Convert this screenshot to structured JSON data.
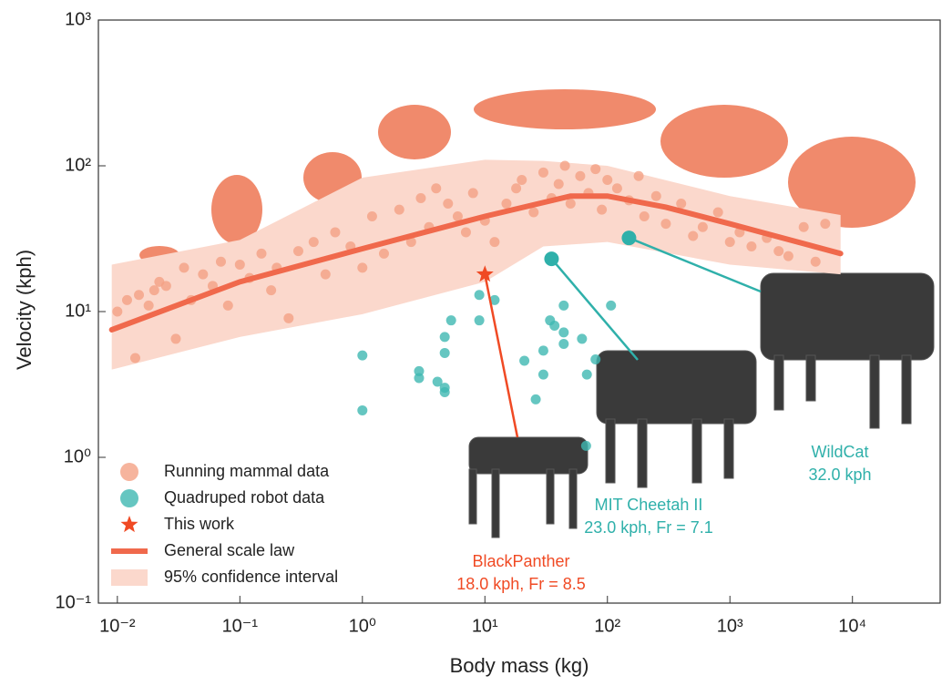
{
  "chart_data": {
    "type": "scatter",
    "xlabel": "Body mass (kg)",
    "ylabel": "Velocity (kph)",
    "xscale": "log",
    "yscale": "log",
    "xlim": [
      0.007,
      52000
    ],
    "ylim": [
      0.1,
      1000
    ],
    "xticks": [
      {
        "value": 0.01,
        "label": "10⁻²"
      },
      {
        "value": 0.1,
        "label": "10⁻¹"
      },
      {
        "value": 1,
        "label": "10⁰"
      },
      {
        "value": 10,
        "label": "10¹"
      },
      {
        "value": 100,
        "label": "10²"
      },
      {
        "value": 1000,
        "label": "10³"
      },
      {
        "value": 10000,
        "label": "10⁴"
      }
    ],
    "yticks": [
      {
        "value": 0.1,
        "label": "10⁻¹"
      },
      {
        "value": 1,
        "label": "10⁰"
      },
      {
        "value": 10,
        "label": "10¹"
      },
      {
        "value": 100,
        "label": "10²"
      },
      {
        "value": 1000,
        "label": "10³"
      }
    ],
    "legend": "lower left",
    "band": {
      "name": "95% confidence interval",
      "color": "#fbd8cc",
      "x": [
        0.009,
        0.1,
        1,
        10,
        30,
        100,
        1000,
        8000
      ],
      "upper": [
        21,
        31,
        83,
        110,
        108,
        100,
        62,
        46
      ],
      "lower": [
        4.0,
        6.7,
        9.6,
        16,
        28,
        30,
        21,
        18
      ]
    },
    "line": {
      "name": "General scale law",
      "color": "#f0694c",
      "x": [
        0.009,
        0.1,
        1,
        10,
        50,
        100,
        300,
        1000,
        8000
      ],
      "values": [
        7.5,
        16,
        27,
        45,
        62,
        62,
        52,
        40,
        25
      ]
    },
    "series": [
      {
        "name": "Running mammal data",
        "color": "#f4a184",
        "x": [
          0.01,
          0.012,
          0.014,
          0.015,
          0.018,
          0.02,
          0.022,
          0.025,
          0.03,
          0.035,
          0.04,
          0.05,
          0.06,
          0.07,
          0.08,
          0.1,
          0.12,
          0.15,
          0.18,
          0.2,
          0.25,
          0.3,
          0.4,
          0.5,
          0.6,
          0.8,
          1,
          1.2,
          1.5,
          2,
          2.5,
          3,
          3.5,
          4,
          5,
          6,
          7,
          8,
          10,
          12,
          15,
          18,
          20,
          25,
          30,
          35,
          40,
          45,
          50,
          60,
          70,
          80,
          90,
          100,
          120,
          150,
          180,
          200,
          250,
          300,
          400,
          500,
          600,
          800,
          1000,
          1200,
          1500,
          2000,
          2500,
          3000,
          4000,
          5000,
          6000
        ],
        "values": [
          10,
          12,
          4.8,
          13,
          11,
          14,
          16,
          15,
          6.5,
          20,
          12,
          18,
          15,
          22,
          11,
          21,
          17,
          25,
          14,
          20,
          9,
          26,
          30,
          18,
          35,
          28,
          20,
          45,
          25,
          50,
          30,
          60,
          38,
          70,
          55,
          45,
          35,
          65,
          42,
          30,
          55,
          70,
          80,
          48,
          90,
          60,
          75,
          100,
          55,
          85,
          65,
          95,
          50,
          80,
          70,
          58,
          85,
          45,
          62,
          40,
          55,
          33,
          38,
          48,
          30,
          35,
          28,
          32,
          26,
          24,
          38,
          22,
          40
        ]
      },
      {
        "name": "Quadruped robot data",
        "color": "#3fb8b2",
        "x": [
          1.0,
          1.0,
          2.9,
          2.9,
          4.1,
          4.7,
          4.7,
          4.7,
          4.7,
          5.3,
          9,
          9,
          12,
          21,
          26,
          30,
          34,
          37,
          44,
          44,
          44,
          30,
          62,
          68,
          80,
          107,
          67
        ],
        "values": [
          5.0,
          2.1,
          3.9,
          3.5,
          3.3,
          3.0,
          2.8,
          5.2,
          6.7,
          8.7,
          13,
          8.7,
          12,
          4.6,
          2.5,
          5.4,
          8.7,
          8,
          11,
          6,
          7.2,
          3.7,
          6.5,
          3.7,
          4.7,
          11,
          1.2
        ]
      },
      {
        "name": "This work",
        "color": "#f04a24",
        "x": [
          10
        ],
        "values": [
          18
        ]
      }
    ],
    "annotations": [
      {
        "label": "BlackPanther",
        "detail": "18.0 kph, Fr = 8.5",
        "x": 10,
        "y": 18,
        "color": "#f04a24"
      },
      {
        "label": "MIT Cheetah II",
        "detail": "23.0 kph, Fr = 7.1",
        "x": 35,
        "y": 23,
        "color": "#2fb0aa"
      },
      {
        "label": "WildCat",
        "detail": "32.0 kph",
        "x": 150,
        "y": 32,
        "color": "#2fb0aa"
      }
    ]
  }
}
